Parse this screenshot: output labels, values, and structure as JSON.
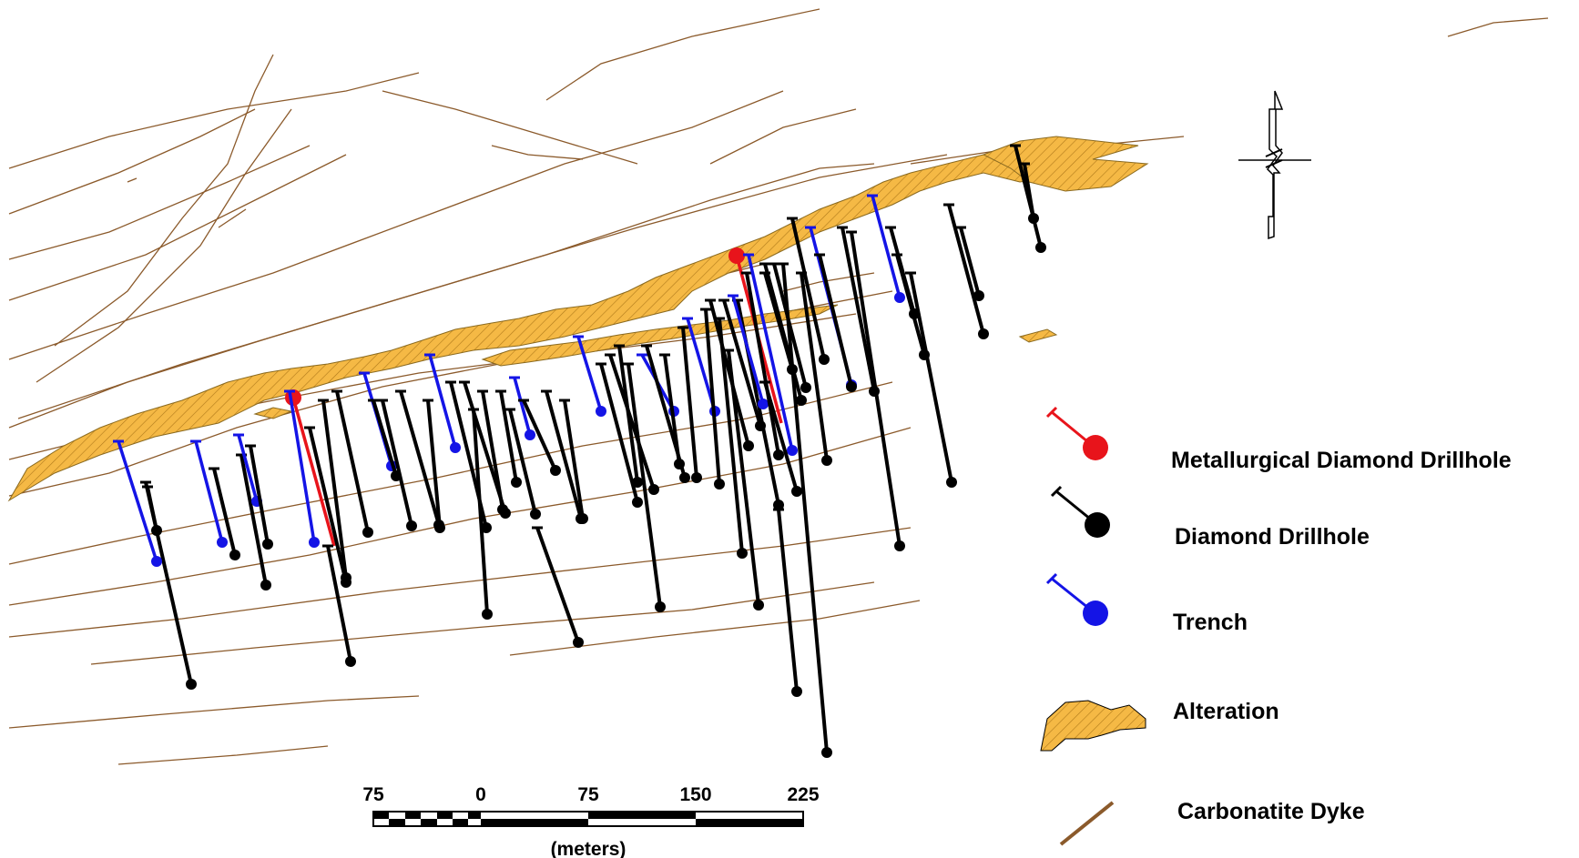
{
  "legend": {
    "items": [
      {
        "label": "Metallurgical Diamond Drillhole",
        "symbol": "drillhole",
        "color": "#e8141b"
      },
      {
        "label": "Diamond Drillhole",
        "symbol": "drillhole",
        "color": "#000000"
      },
      {
        "label": "Trench",
        "symbol": "drillhole",
        "color": "#1414e6"
      },
      {
        "label": "Alteration",
        "symbol": "polygon",
        "color": "#f5b945"
      },
      {
        "label": "Carbonatite Dyke",
        "symbol": "line",
        "color": "#8b5a2b"
      }
    ]
  },
  "scale_bar": {
    "labels": [
      "75",
      "0",
      "75",
      "150",
      "225"
    ],
    "unit": "(meters)"
  },
  "north_arrow": {
    "symbol": "north-arrow-icon"
  },
  "colors": {
    "alteration_fill": "#f5b945",
    "alteration_hatch": "#b07a1a",
    "dyke": "#8b5a2b",
    "metallurgical": "#e8141b",
    "diamond": "#000000",
    "trench": "#1414e6"
  }
}
